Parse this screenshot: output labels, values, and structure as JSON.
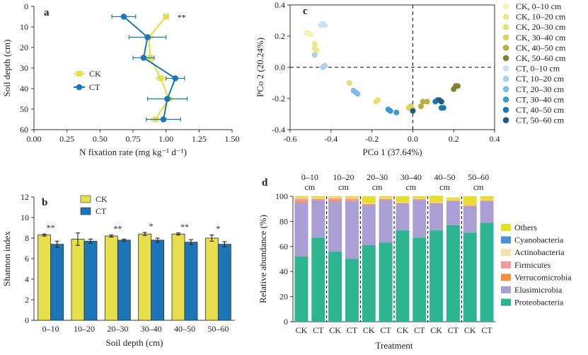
{
  "colors": {
    "ck": "#e6de4a",
    "ct": "#1b75b8",
    "axis": "#333333",
    "gridline": "#000000"
  },
  "chart_data": [
    {
      "panel": "a",
      "type": "line",
      "xlabel": "N fixation rate (mg kg⁻¹ d⁻¹)",
      "ylabel": "Soil depth (cm)",
      "xlim": [
        0,
        1.5
      ],
      "ylim": [
        60,
        0
      ],
      "xticks": [
        "0.00",
        "0.25",
        "0.50",
        "0.75",
        "1.00",
        "1.25",
        "1.50"
      ],
      "yticks": [
        "0",
        "10",
        "20",
        "30",
        "40",
        "50",
        "60"
      ],
      "legend_position": "middle-left",
      "annotation": "**",
      "series": [
        {
          "name": "CK",
          "marker": "square",
          "x": [
            1.0,
            0.87,
            0.88,
            0.96,
            1.02,
            0.92
          ],
          "y": [
            5,
            15,
            25,
            35,
            45,
            55
          ],
          "xerr": [
            0.02,
            0.03,
            0.03,
            0.03,
            0.03,
            0.03
          ]
        },
        {
          "name": "CT",
          "marker": "circle",
          "x": [
            0.68,
            0.86,
            0.83,
            1.07,
            1.01,
            0.98
          ],
          "y": [
            5,
            15,
            25,
            35,
            45,
            55
          ],
          "xerr": [
            0.09,
            0.14,
            0.08,
            0.07,
            0.15,
            0.13
          ]
        }
      ]
    },
    {
      "panel": "b",
      "type": "bar",
      "xlabel": "Soil depth (cm)",
      "ylabel": "Shannon index",
      "ylim": [
        0,
        12
      ],
      "yticks": [
        "0",
        "2",
        "4",
        "6",
        "8",
        "10",
        "12"
      ],
      "categories": [
        "0–10",
        "10–20",
        "20–30",
        "30–40",
        "40–50",
        "50–60"
      ],
      "legend_position": "top",
      "significance": [
        "**",
        "",
        "**",
        "*",
        "**",
        "*"
      ],
      "series": [
        {
          "name": "CK",
          "values": [
            8.3,
            7.9,
            8.2,
            8.4,
            8.4,
            8.0
          ],
          "err": [
            0.1,
            0.6,
            0.1,
            0.15,
            0.1,
            0.3
          ]
        },
        {
          "name": "CT",
          "values": [
            7.4,
            7.7,
            7.8,
            7.8,
            7.6,
            7.4
          ],
          "err": [
            0.3,
            0.2,
            0.1,
            0.2,
            0.25,
            0.25
          ]
        }
      ]
    },
    {
      "panel": "c",
      "type": "scatter",
      "xlabel": "PCo 1 (37.64%)",
      "ylabel": "PCo 2 (20.24%)",
      "xlim": [
        -0.6,
        0.4
      ],
      "ylim": [
        -0.4,
        0.4
      ],
      "xticks": [
        "-0.6",
        "-0.4",
        "-0.2",
        "0.0",
        "0.2",
        "0.4"
      ],
      "yticks": [
        "-0.4",
        "-0.2",
        "0.0",
        "0.2",
        "0.4"
      ],
      "legend_position": "right",
      "series": [
        {
          "name": "CK, 0–10 cm",
          "color": "#f6f3b0",
          "points": [
            [
              -0.52,
              0.22
            ],
            [
              -0.51,
              0.22
            ],
            [
              -0.5,
              0.21
            ]
          ]
        },
        {
          "name": "CK, 10–20 cm",
          "color": "#efe885",
          "points": [
            [
              -0.48,
              0.15
            ],
            [
              -0.48,
              0.12
            ],
            [
              -0.47,
              0.11
            ]
          ]
        },
        {
          "name": "CK, 20–30 cm",
          "color": "#e9df72",
          "points": [
            [
              -0.31,
              -0.1
            ],
            [
              -0.18,
              -0.22
            ],
            [
              -0.17,
              -0.21
            ]
          ]
        },
        {
          "name": "CK, 30–40 cm",
          "color": "#dcd15a",
          "points": [
            [
              -0.02,
              -0.26
            ],
            [
              0.0,
              -0.27
            ],
            [
              -0.01,
              -0.25
            ]
          ]
        },
        {
          "name": "CK, 40–50 cm",
          "color": "#b9ae3c",
          "points": [
            [
              0.04,
              -0.25
            ],
            [
              0.05,
              -0.22
            ],
            [
              0.07,
              -0.22
            ]
          ]
        },
        {
          "name": "CK, 50–60 cm",
          "color": "#858030",
          "points": [
            [
              0.2,
              -0.14
            ],
            [
              0.21,
              -0.12
            ],
            [
              0.22,
              -0.12
            ]
          ]
        },
        {
          "name": "CT, 0–10 cm",
          "color": "#c7e3f5",
          "points": [
            [
              -0.45,
              0.27
            ],
            [
              -0.44,
              0.28
            ],
            [
              -0.43,
              0.27
            ]
          ]
        },
        {
          "name": "CT, 10–20 cm",
          "color": "#a6d2ef",
          "points": [
            [
              -0.48,
              0.08
            ],
            [
              -0.44,
              0.0
            ],
            [
              -0.43,
              0.01
            ]
          ]
        },
        {
          "name": "CT, 20–30 cm",
          "color": "#7bbde6",
          "points": [
            [
              -0.29,
              -0.15
            ],
            [
              -0.28,
              -0.16
            ],
            [
              -0.27,
              -0.17
            ]
          ]
        },
        {
          "name": "CT, 30–40 cm",
          "color": "#3a9ad6",
          "points": [
            [
              -0.12,
              -0.27
            ],
            [
              -0.11,
              -0.28
            ],
            [
              -0.08,
              -0.29
            ]
          ]
        },
        {
          "name": "CT, 40–50 cm",
          "color": "#1c79b2",
          "points": [
            [
              0.11,
              -0.22
            ],
            [
              0.12,
              -0.21
            ],
            [
              0.14,
              -0.26
            ],
            [
              0.15,
              -0.26
            ]
          ]
        },
        {
          "name": "CT, 50–60 cm",
          "color": "#235a80",
          "points": [
            [
              0.13,
              -0.21
            ],
            [
              0.0,
              -0.28
            ],
            [
              0.14,
              -0.22
            ]
          ]
        }
      ]
    },
    {
      "panel": "d",
      "type": "bar",
      "stacked": true,
      "xlabel": "Treatment",
      "ylabel": "Relative abundance (%)",
      "ylim": [
        0,
        100
      ],
      "yticks": [
        "0",
        "20",
        "40",
        "60",
        "80",
        "100"
      ],
      "categories": [
        "CK",
        "CT",
        "CK",
        "CT",
        "CK",
        "CT",
        "CK",
        "CT",
        "CK",
        "CT",
        "CK",
        "CT"
      ],
      "group_labels": [
        "0–10 cm",
        "10–20 cm",
        "20–30 cm",
        "30–40 cm",
        "40–50 cm",
        "50–60 cm"
      ],
      "legend_position": "right",
      "series": [
        {
          "name": "Proteobacteria",
          "color": "#2db592",
          "values": [
            52,
            67,
            56,
            50,
            61,
            63,
            73,
            67,
            73,
            77,
            71,
            79
          ]
        },
        {
          "name": "Elusimicrobia",
          "color": "#aa9fd4",
          "values": [
            43,
            30,
            40,
            46,
            32,
            34,
            21,
            30,
            21,
            19,
            21,
            17
          ]
        },
        {
          "name": "Verrucomicrobia",
          "color": "#f2923c",
          "values": [
            1,
            0.5,
            1,
            0.5,
            0.5,
            0.5,
            0.5,
            0.5,
            0.5,
            0.5,
            0.5,
            0.5
          ]
        },
        {
          "name": "Firmicutes",
          "color": "#f29a9a",
          "values": [
            2,
            0.5,
            1.5,
            1.5,
            0.5,
            0.5,
            0.5,
            0.3,
            0.5,
            0.3,
            0.5,
            0.3
          ]
        },
        {
          "name": "Actinobacteria",
          "color": "#f7e2a8",
          "values": [
            0.5,
            0.5,
            0.5,
            0.5,
            0.5,
            0.5,
            0.5,
            0.5,
            0.5,
            0.5,
            0.5,
            0.5
          ]
        },
        {
          "name": "Cyanobacteria",
          "color": "#4a8fd8",
          "values": [
            0,
            0,
            0,
            0,
            0,
            0,
            0,
            0,
            0,
            0,
            0,
            0
          ]
        },
        {
          "name": "Others",
          "color": "#e8dd28",
          "values": [
            1.5,
            1.5,
            1,
            1.5,
            5.5,
            1.5,
            4.5,
            1.7,
            5,
            1.7,
            6.5,
            2.7
          ]
        }
      ]
    }
  ]
}
